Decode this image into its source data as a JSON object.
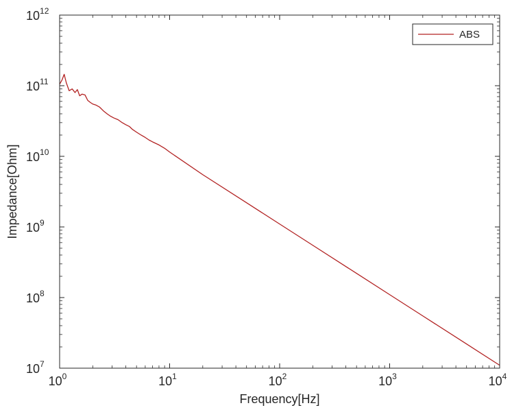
{
  "chart_data": {
    "type": "line",
    "xlabel": "Frequency[Hz]",
    "ylabel": "Impedance[Ohm]",
    "xscale": "log",
    "yscale": "log",
    "xlim": [
      1,
      10000
    ],
    "ylim": [
      10000000,
      1000000000000
    ],
    "xticks": [
      {
        "value": 1,
        "base": "10",
        "exp": "0"
      },
      {
        "value": 10,
        "base": "10",
        "exp": "1"
      },
      {
        "value": 100,
        "base": "10",
        "exp": "2"
      },
      {
        "value": 1000,
        "base": "10",
        "exp": "3"
      },
      {
        "value": 10000,
        "base": "10",
        "exp": "4"
      }
    ],
    "yticks": [
      {
        "value": 10000000,
        "base": "10",
        "exp": "7"
      },
      {
        "value": 100000000,
        "base": "10",
        "exp": "8"
      },
      {
        "value": 1000000000,
        "base": "10",
        "exp": "9"
      },
      {
        "value": 10000000000,
        "base": "10",
        "exp": "10"
      },
      {
        "value": 100000000000,
        "base": "10",
        "exp": "11"
      },
      {
        "value": 1000000000000,
        "base": "10",
        "exp": "12"
      }
    ],
    "grid": false,
    "legend": "top-right",
    "series": [
      {
        "name": "ABS",
        "color": "#b22222",
        "x": [
          1,
          1.05,
          1.1,
          1.15,
          1.22,
          1.3,
          1.38,
          1.45,
          1.52,
          1.6,
          1.7,
          1.8,
          1.9,
          2.0,
          2.15,
          2.3,
          2.5,
          2.7,
          2.9,
          3.1,
          3.4,
          3.7,
          4.0,
          4.3,
          4.6,
          5.0,
          5.5,
          6.0,
          6.5,
          7.0,
          8.0,
          9.0,
          10,
          20,
          50,
          100,
          200,
          500,
          1000,
          2000,
          5000,
          10000
        ],
        "y": [
          105000000000,
          120000000000,
          145000000000,
          110000000000,
          85000000000,
          90000000000,
          80000000000,
          88000000000,
          72000000000,
          76000000000,
          74000000000,
          62000000000,
          58000000000,
          55000000000,
          53000000000,
          50000000000,
          44000000000,
          40000000000,
          37000000000,
          35000000000,
          33000000000,
          30000000000,
          28000000000,
          26500000000,
          24000000000,
          22000000000,
          20000000000,
          18500000000,
          17000000000,
          16000000000,
          14500000000,
          13000000000,
          11500000000,
          5500000000,
          2200000000,
          1100000000,
          550000000,
          220000000,
          110000000,
          55000000,
          22000000,
          11000000
        ]
      }
    ]
  }
}
